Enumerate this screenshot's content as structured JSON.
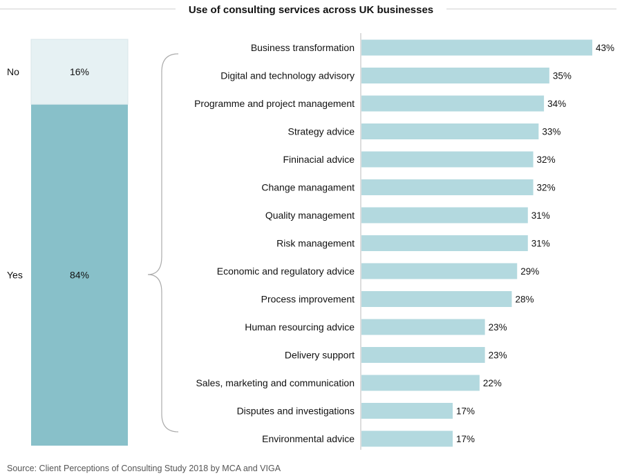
{
  "chart_data": [
    {
      "type": "bar",
      "orientation": "vertical-stacked-100",
      "categories": [
        "Yes",
        "No"
      ],
      "values": [
        84,
        16
      ],
      "value_labels": [
        "84%",
        "16%"
      ],
      "colors": {
        "Yes": "#88c0c9",
        "No": "#e6f1f3"
      }
    },
    {
      "type": "bar",
      "orientation": "horizontal",
      "title": "Use of consulting services across UK businesses",
      "categories": [
        "Business transformation",
        "Digital and technology advisory",
        "Programme and project management",
        "Strategy advice",
        "Fininacial advice",
        "Change managament",
        "Quality management",
        "Risk management",
        "Economic and regulatory advice",
        "Process improvement",
        "Human resourcing advice",
        "Delivery support",
        "Sales, marketing and communication",
        "Disputes and investigations",
        "Environmental advice"
      ],
      "values": [
        43,
        35,
        34,
        33,
        32,
        32,
        31,
        31,
        29,
        28,
        23,
        23,
        22,
        17,
        17
      ],
      "value_labels": [
        "43%",
        "35%",
        "34%",
        "33%",
        "32%",
        "32%",
        "31%",
        "31%",
        "29%",
        "28%",
        "23%",
        "23%",
        "22%",
        "17%",
        "17%"
      ],
      "xlim": [
        0,
        43
      ],
      "bar_color": "#b3d9df"
    }
  ],
  "footer": {
    "source": "Source: Client Perceptions of Consulting Study 2018 by MCA and VIGA"
  },
  "colors": {
    "axis": "#bbbbbb",
    "brace": "#aaaaaa",
    "title_rule": "#cccccc"
  }
}
